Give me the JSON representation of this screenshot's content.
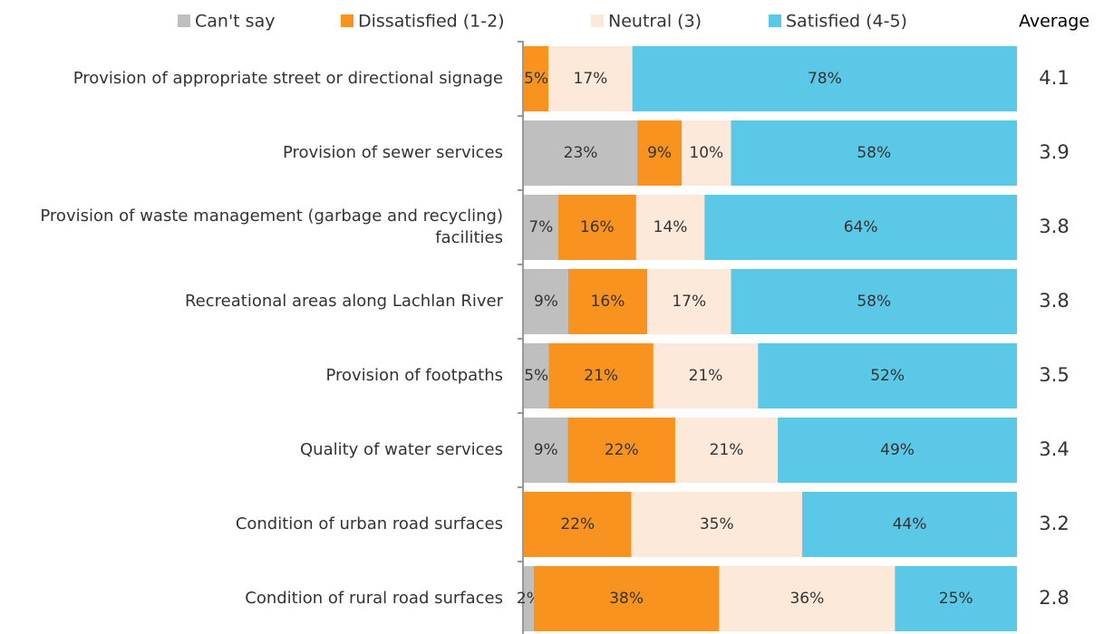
{
  "chart_data": {
    "type": "stacked-bar-horizontal",
    "categories": [
      "Provision of appropriate street or directional signage",
      "Provision of sewer services",
      "Provision of waste management (garbage and recycling) facilities",
      "Recreational areas along Lachlan River",
      "Provision of footpaths",
      "Quality of water services",
      "Condition of urban road surfaces",
      "Condition of rural road surfaces"
    ],
    "series": [
      {
        "name": "Can't say",
        "color": "#bfbfbf",
        "values": [
          0,
          23,
          7,
          9,
          5,
          9,
          0,
          2
        ],
        "value_labels": [
          null,
          "23%",
          "7%",
          "9%",
          "5%",
          "9%",
          null,
          "2%"
        ]
      },
      {
        "name": "Dissatisfied (1-2)",
        "color": "#f7931e",
        "values": [
          5,
          9,
          16,
          16,
          21,
          22,
          22,
          38
        ],
        "value_labels": [
          "5%",
          "9%",
          "16%",
          "16%",
          "21%",
          "22%",
          "22%",
          "38%"
        ]
      },
      {
        "name": "Neutral (3)",
        "color": "#fde9d9",
        "values": [
          17,
          10,
          14,
          17,
          21,
          21,
          35,
          36
        ],
        "value_labels": [
          "17%",
          "10%",
          "14%",
          "17%",
          "21%",
          "21%",
          "35%",
          "36%"
        ]
      },
      {
        "name": "Satisfied (4-5)",
        "color": "#5bc8e8",
        "values": [
          78,
          58,
          64,
          58,
          52,
          49,
          44,
          25
        ],
        "value_labels": [
          "78%",
          "58%",
          "64%",
          "58%",
          "52%",
          "49%",
          "44%",
          "25%"
        ]
      }
    ],
    "averages_title": "Average",
    "averages": [
      4.1,
      3.9,
      3.8,
      3.8,
      3.5,
      3.4,
      3.2,
      2.8
    ],
    "legend": "top"
  }
}
